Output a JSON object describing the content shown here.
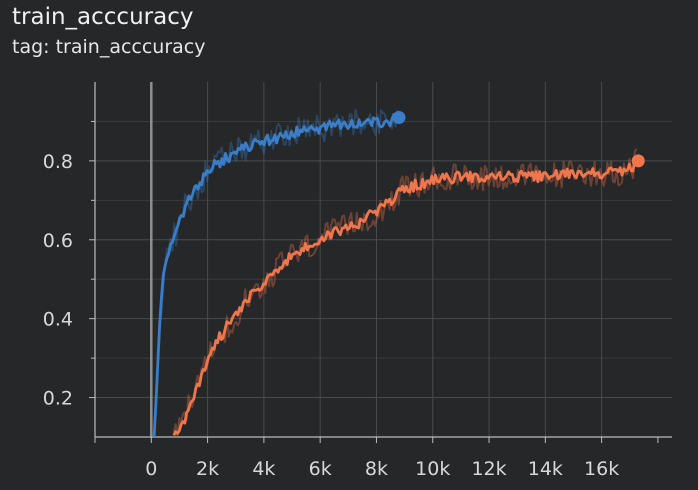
{
  "header": {
    "title": "train_acccuracy",
    "tag_text": "tag: train_acccuracy"
  },
  "chart_data": {
    "type": "line",
    "title": "train_acccuracy",
    "subtitle": "tag: train_acccuracy",
    "xlim": [
      -2000,
      18500
    ],
    "ylim": [
      0.1,
      1.0
    ],
    "x_ticks": [
      0,
      2000,
      4000,
      6000,
      8000,
      10000,
      12000,
      14000,
      16000
    ],
    "x_tick_labels": [
      "0",
      "2k",
      "4k",
      "6k",
      "8k",
      "10k",
      "12k",
      "14k",
      "16k"
    ],
    "y_ticks": [
      0.2,
      0.4,
      0.6,
      0.8
    ],
    "y_tick_labels": [
      "0.2",
      "0.4",
      "0.6",
      "0.8"
    ],
    "grid": true,
    "series": [
      {
        "color": "#3a7ec9",
        "x": [
          100,
          200,
          300,
          400,
          500,
          700,
          900,
          1200,
          1500,
          1800,
          2000,
          2500,
          3000,
          3500,
          4000,
          4500,
          5000,
          5500,
          6000,
          6500,
          7000,
          7500,
          8000,
          8500,
          8800
        ],
        "y": [
          0.1,
          0.25,
          0.38,
          0.48,
          0.55,
          0.59,
          0.62,
          0.68,
          0.72,
          0.75,
          0.78,
          0.8,
          0.82,
          0.84,
          0.85,
          0.86,
          0.87,
          0.88,
          0.88,
          0.89,
          0.89,
          0.9,
          0.9,
          0.9,
          0.91
        ]
      },
      {
        "color": "#f0764d",
        "x": [
          800,
          1200,
          1600,
          2000,
          2500,
          3000,
          3500,
          4000,
          4500,
          5000,
          5500,
          6000,
          6500,
          7000,
          7500,
          8000,
          8500,
          9000,
          9500,
          10000,
          11000,
          12000,
          13000,
          14000,
          15000,
          16000,
          16500,
          17000,
          17300
        ],
        "y": [
          0.1,
          0.15,
          0.22,
          0.3,
          0.36,
          0.41,
          0.46,
          0.49,
          0.53,
          0.56,
          0.58,
          0.6,
          0.62,
          0.63,
          0.65,
          0.67,
          0.7,
          0.73,
          0.74,
          0.75,
          0.76,
          0.76,
          0.76,
          0.76,
          0.77,
          0.77,
          0.77,
          0.78,
          0.8
        ]
      }
    ]
  }
}
